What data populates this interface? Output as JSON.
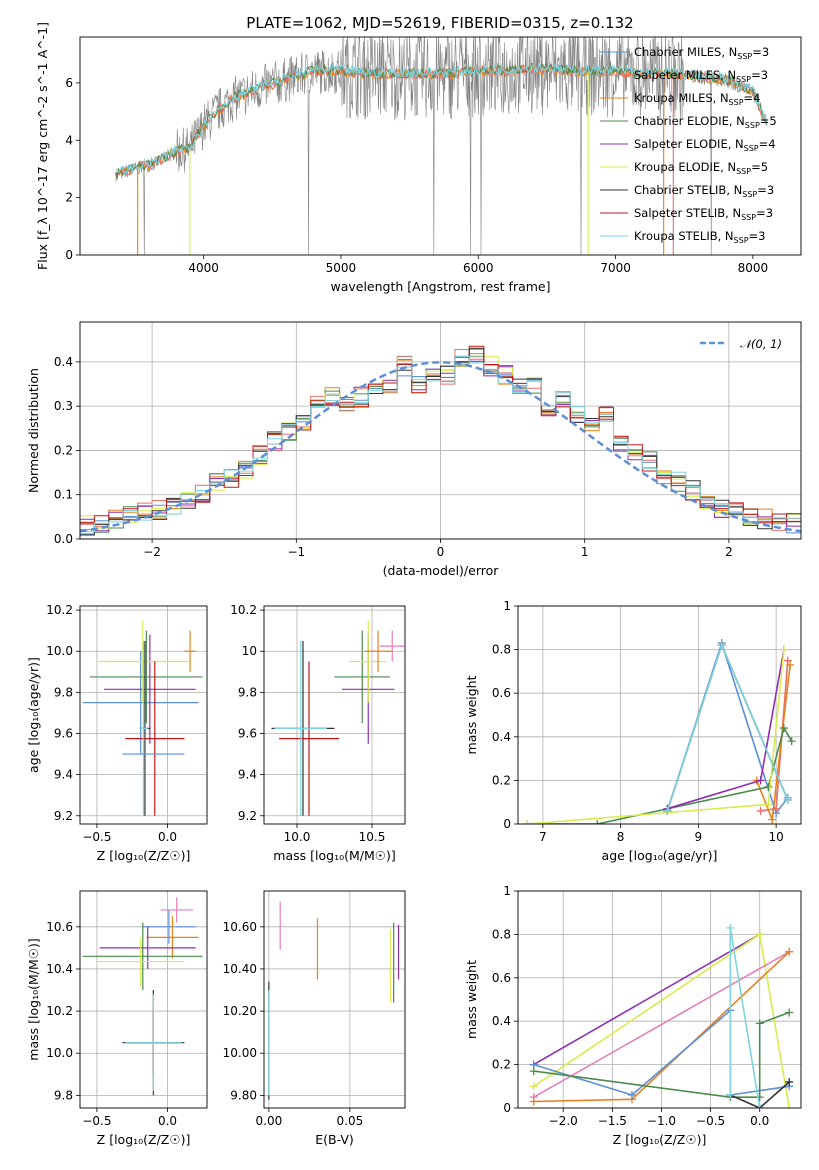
{
  "title": "PLATE=1062, MJD=52619, FIBERID=0315, z=0.132",
  "colors": {
    "Chabrier MILES": "#5b8fd6",
    "Salpeter MILES": "#e8706a",
    "Kroupa MILES": "#e8821e",
    "Chabrier ELODIE": "#4e8a4e",
    "Salpeter ELODIE": "#8e2fb3",
    "Kroupa ELODIE": "#d9ec4d",
    "Chabrier STELIB": "#333333",
    "Salpeter STELIB": "#c01818",
    "Kroupa STELIB": "#7fd3e0",
    "data": "#808080",
    "pink": "#e87fb8",
    "normal": "#5b8fd6"
  },
  "chart_data": [
    {
      "id": "spectrum",
      "type": "line",
      "xlabel": "wavelength [Angstrom, rest frame]",
      "ylabel": "Flux [f_λ 10^-17 erg cm^-2 s^-1 A^-1]",
      "xlim": [
        3100,
        8350
      ],
      "ylim": [
        0,
        7.6
      ],
      "xticks": [
        4000,
        5000,
        6000,
        7000,
        8000
      ],
      "yticks": [
        0,
        2,
        4,
        6
      ],
      "legend_position": "top-right",
      "legend": [
        {
          "name": "Chabrier MILES, N_SSP=3",
          "label": "Chabrier MILES, N",
          "n": "=3"
        },
        {
          "name": "Salpeter MILES, N_SSP=3",
          "label": "Salpeter MILES, N",
          "n": "=3"
        },
        {
          "name": "Kroupa MILES, N_SSP=4",
          "label": "Kroupa MILES, N",
          "n": "=4"
        },
        {
          "name": "Chabrier ELODIE, N_SSP=5",
          "label": "Chabrier ELODIE, N",
          "n": "=5"
        },
        {
          "name": "Salpeter ELODIE, N_SSP=4",
          "label": "Salpeter ELODIE, N",
          "n": "=4"
        },
        {
          "name": "Kroupa ELODIE, N_SSP=5",
          "label": "Kroupa ELODIE, N",
          "n": "=5"
        },
        {
          "name": "Chabrier STELIB, N_SSP=3",
          "label": "Chabrier STELIB, N",
          "n": "=3"
        },
        {
          "name": "Salpeter STELIB, N_SSP=3",
          "label": "Salpeter STELIB, N",
          "n": "=3"
        },
        {
          "name": "Kroupa STELIB, N_SSP=3",
          "label": "Kroupa STELIB, N",
          "n": "=3"
        }
      ],
      "continuum": {
        "wavelength": [
          3360,
          3500,
          3650,
          3800,
          3900,
          4000,
          4100,
          4200,
          4400,
          4600,
          4800,
          5000,
          5200,
          5400,
          5600,
          5800,
          6000,
          6200,
          6400,
          6600,
          6800,
          7000,
          7200,
          7400,
          7600,
          7800,
          8000,
          8100
        ],
        "flux": [
          2.8,
          3.0,
          3.2,
          3.6,
          3.7,
          4.5,
          5.0,
          5.4,
          5.8,
          6.1,
          6.4,
          6.4,
          6.3,
          6.3,
          6.3,
          6.3,
          6.4,
          6.4,
          6.5,
          6.4,
          6.4,
          6.4,
          6.3,
          6.3,
          6.2,
          6.1,
          5.7,
          4.6
        ]
      }
    },
    {
      "id": "residuals",
      "type": "line",
      "xlabel": "(data-model)/error",
      "ylabel": "Normed distribution",
      "xlim": [
        -2.5,
        2.5
      ],
      "ylim": [
        0,
        0.49
      ],
      "xticks": [
        -2,
        -1,
        0,
        1,
        2
      ],
      "yticks": [
        0.0,
        0.1,
        0.2,
        0.3,
        0.4
      ],
      "legend_position": "top-right",
      "legend": {
        "name": "𝒩(0, 1)"
      },
      "bin_width": 0.1,
      "bin_centers": [
        -2.45,
        -2.35,
        -2.25,
        -2.15,
        -2.05,
        -1.95,
        -1.85,
        -1.75,
        -1.65,
        -1.55,
        -1.45,
        -1.35,
        -1.25,
        -1.15,
        -1.05,
        -0.95,
        -0.85,
        -0.75,
        -0.65,
        -0.55,
        -0.45,
        -0.35,
        -0.25,
        -0.15,
        -0.05,
        0.05,
        0.15,
        0.25,
        0.35,
        0.45,
        0.55,
        0.65,
        0.75,
        0.85,
        0.95,
        1.05,
        1.15,
        1.25,
        1.35,
        1.45,
        1.55,
        1.65,
        1.75,
        1.85,
        1.95,
        2.05,
        2.15,
        2.25,
        2.35,
        2.45
      ],
      "histogram": [
        0.03,
        0.035,
        0.045,
        0.055,
        0.06,
        0.065,
        0.075,
        0.085,
        0.105,
        0.125,
        0.135,
        0.16,
        0.19,
        0.22,
        0.24,
        0.265,
        0.3,
        0.32,
        0.3,
        0.32,
        0.33,
        0.34,
        0.39,
        0.35,
        0.37,
        0.37,
        0.41,
        0.42,
        0.39,
        0.37,
        0.34,
        0.35,
        0.3,
        0.32,
        0.28,
        0.26,
        0.28,
        0.22,
        0.2,
        0.175,
        0.145,
        0.13,
        0.11,
        0.085,
        0.07,
        0.06,
        0.05,
        0.045,
        0.04,
        0.035
      ]
    },
    {
      "id": "age-vs-Z",
      "type": "scatter",
      "xlabel": "Z [log₁₀(Z/Z☉)]",
      "ylabel": "age [log₁₀(age/yr)]",
      "xlim": [
        -0.62,
        0.28
      ],
      "ylim": [
        9.16,
        10.22
      ],
      "xticks": [
        -0.5,
        0.0
      ],
      "yticks": [
        9.2,
        9.4,
        9.6,
        9.8,
        10.0,
        10.2
      ],
      "crosses": [
        {
          "series": "Chabrier MILES",
          "x": [
            -0.6,
            0.22
          ],
          "y": [
            9.5,
            10.0
          ]
        },
        {
          "series": "Salpeter ELODIE",
          "x": [
            -0.45,
            0.2
          ],
          "y": [
            9.55,
            10.08
          ]
        },
        {
          "series": "Kroupa MILES",
          "x": [
            0.12,
            0.2
          ],
          "y": [
            9.9,
            10.1
          ]
        },
        {
          "series": "Kroupa ELODIE",
          "x": [
            -0.5,
            0.15
          ],
          "y": [
            9.75,
            10.15
          ]
        },
        {
          "series": "Chabrier ELODIE",
          "x": [
            -0.55,
            0.25
          ],
          "y": [
            9.65,
            10.1
          ]
        },
        {
          "series": "Chabrier STELIB",
          "x": [
            -0.2,
            -0.12
          ],
          "y": [
            9.2,
            10.05
          ]
        },
        {
          "series": "Salpeter STELIB",
          "x": [
            -0.3,
            0.12
          ],
          "y": [
            9.2,
            9.95
          ]
        },
        {
          "series": "Kroupa STELIB",
          "x": [
            -0.2,
            -0.14
          ],
          "y": [
            9.2,
            10.05
          ]
        },
        {
          "series": "Chabrier MILES",
          "x": [
            -0.32,
            0.12
          ],
          "y": [
            9.5,
            9.5
          ]
        }
      ]
    },
    {
      "id": "age-vs-mass",
      "type": "scatter",
      "xlabel": "mass [log₁₀(M/M☉)]",
      "ylabel": "",
      "xlim": [
        9.78,
        10.72
      ],
      "ylim": [
        9.16,
        10.22
      ],
      "xticks": [
        10.0,
        10.5
      ],
      "yticks": [
        9.2,
        9.4,
        9.6,
        9.8,
        10.0,
        10.2
      ],
      "crosses": [
        {
          "series": "Chabrier STELIB",
          "x": [
            9.83,
            10.25
          ],
          "y": [
            9.2,
            10.05
          ]
        },
        {
          "series": "Salpeter STELIB",
          "x": [
            9.88,
            10.28
          ],
          "y": [
            9.2,
            9.95
          ]
        },
        {
          "series": "Kroupa STELIB",
          "x": [
            9.85,
            10.2
          ],
          "y": [
            9.2,
            10.05
          ]
        },
        {
          "series": "Chabrier ELODIE",
          "x": [
            10.25,
            10.62
          ],
          "y": [
            9.65,
            10.1
          ]
        },
        {
          "series": "Salpeter ELODIE",
          "x": [
            10.3,
            10.65
          ],
          "y": [
            9.55,
            10.08
          ]
        },
        {
          "series": "Kroupa ELODIE",
          "x": [
            10.35,
            10.6
          ],
          "y": [
            9.75,
            10.15
          ]
        },
        {
          "series": "Kroupa MILES",
          "x": [
            10.45,
            10.63
          ],
          "y": [
            9.9,
            10.1
          ]
        },
        {
          "series": "pink",
          "x": [
            10.55,
            10.72
          ],
          "y": [
            9.95,
            10.1
          ]
        }
      ]
    },
    {
      "id": "weight-vs-age",
      "type": "line",
      "xlabel": "age [log₁₀(age/yr)]",
      "ylabel": "mass weight",
      "xlim": [
        6.68,
        10.32
      ],
      "ylim": [
        0,
        1.0
      ],
      "xticks": [
        7,
        8,
        9,
        10
      ],
      "yticks": [
        0.0,
        0.2,
        0.4,
        0.6,
        0.8,
        1.0
      ],
      "series": [
        {
          "name": "Chabrier MILES",
          "x": [
            8.6,
            9.3,
            10.0,
            10.15
          ],
          "y": [
            0.06,
            0.83,
            0.05,
            0.12
          ]
        },
        {
          "name": "Salpeter MILES",
          "x": [
            9.8,
            10.0,
            10.15
          ],
          "y": [
            0.06,
            0.07,
            0.75
          ]
        },
        {
          "name": "Kroupa MILES",
          "x": [
            9.75,
            9.95,
            10.18
          ],
          "y": [
            0.2,
            0.02,
            0.73
          ]
        },
        {
          "name": "Chabrier ELODIE",
          "x": [
            6.8,
            7.7,
            9.9,
            10.1,
            10.2
          ],
          "y": [
            0.0,
            0.0,
            0.17,
            0.44,
            0.38
          ]
        },
        {
          "name": "Salpeter ELODIE",
          "x": [
            8.6,
            9.8,
            10.1
          ],
          "y": [
            0.07,
            0.2,
            0.8
          ]
        },
        {
          "name": "Kroupa ELODIE",
          "x": [
            6.8,
            9.9,
            10.1
          ],
          "y": [
            0.0,
            0.09,
            0.8
          ]
        },
        {
          "name": "Chabrier STELIB",
          "x": [
            8.6,
            9.3,
            10.15
          ],
          "y": [
            0.06,
            0.82,
            0.11
          ]
        },
        {
          "name": "Kroupa STELIB",
          "x": [
            8.6,
            9.3,
            10.15
          ],
          "y": [
            0.06,
            0.82,
            0.11
          ]
        }
      ]
    },
    {
      "id": "mass-vs-Z",
      "type": "scatter",
      "xlabel": "Z [log₁₀(Z/Z☉)]",
      "ylabel": "mass [log₁₀(M/M☉)]",
      "xlim": [
        -0.62,
        0.28
      ],
      "ylim": [
        9.74,
        10.77
      ],
      "xticks": [
        -0.5,
        0.0
      ],
      "yticks": [
        9.8,
        10.0,
        10.2,
        10.4,
        10.6
      ],
      "crosses": [
        {
          "series": "pink",
          "x": [
            -0.05,
            0.18
          ],
          "y": [
            10.62,
            10.74
          ]
        },
        {
          "series": "Chabrier MILES",
          "x": [
            -0.18,
            0.2
          ],
          "y": [
            10.52,
            10.68
          ]
        },
        {
          "series": "Kroupa MILES",
          "x": [
            -0.15,
            0.22
          ],
          "y": [
            10.45,
            10.65
          ]
        },
        {
          "series": "Chabrier ELODIE",
          "x": [
            -0.6,
            0.25
          ],
          "y": [
            10.3,
            10.62
          ]
        },
        {
          "series": "Salpeter ELODIE",
          "x": [
            -0.48,
            0.2
          ],
          "y": [
            10.4,
            10.6
          ]
        },
        {
          "series": "Kroupa ELODIE",
          "x": [
            -0.5,
            0.12
          ],
          "y": [
            10.32,
            10.55
          ]
        },
        {
          "series": "Salpeter STELIB",
          "x": [
            -0.3,
            0.1
          ],
          "y": [
            9.9,
            10.2
          ]
        },
        {
          "series": "Chabrier STELIB",
          "x": [
            -0.32,
            0.12
          ],
          "y": [
            9.8,
            10.3
          ]
        },
        {
          "series": "Kroupa STELIB",
          "x": [
            -0.3,
            0.1
          ],
          "y": [
            9.82,
            10.28
          ]
        }
      ]
    },
    {
      "id": "mass-vs-EBV",
      "type": "scatter",
      "xlabel": "E(B-V)",
      "ylabel": "",
      "xlim": [
        -0.003,
        0.084
      ],
      "ylim": [
        9.74,
        10.77
      ],
      "xticks": [
        0.0,
        0.05
      ],
      "yticks": [
        9.8,
        10.0,
        10.2,
        10.4,
        10.6
      ],
      "vlines": [
        {
          "series": "Chabrier STELIB",
          "x": 0.0,
          "y": [
            9.78,
            10.34
          ]
        },
        {
          "series": "Kroupa STELIB",
          "x": 0.0,
          "y": [
            9.8,
            10.3
          ]
        },
        {
          "series": "pink",
          "x": 0.007,
          "y": [
            10.49,
            10.72
          ]
        },
        {
          "series": "Kroupa MILES",
          "x": 0.03,
          "y": [
            10.35,
            10.64
          ]
        },
        {
          "series": "Kroupa ELODIE",
          "x": 0.075,
          "y": [
            10.24,
            10.59
          ]
        },
        {
          "series": "Chabrier ELODIE",
          "x": 0.077,
          "y": [
            10.24,
            10.62
          ]
        },
        {
          "series": "Salpeter ELODIE",
          "x": 0.08,
          "y": [
            10.35,
            10.61
          ]
        }
      ]
    },
    {
      "id": "weight-vs-Z",
      "type": "line",
      "xlabel": "Z [log₁₀(Z/Z☉)]",
      "ylabel": "mass weight",
      "xlim": [
        -2.46,
        0.42
      ],
      "ylim": [
        0,
        1.0
      ],
      "xticks": [
        -2.0,
        -1.5,
        -1.0,
        -0.5,
        0.0
      ],
      "yticks": [
        0.0,
        0.2,
        0.4,
        0.6,
        0.8,
        1.0
      ],
      "series": [
        {
          "name": "Salpeter ELODIE",
          "x": [
            -2.3,
            0.0
          ],
          "y": [
            0.2,
            0.8
          ]
        },
        {
          "name": "Kroupa ELODIE",
          "x": [
            -2.3,
            0.0,
            0.3
          ],
          "y": [
            0.1,
            0.8,
            0.0
          ]
        },
        {
          "name": "pink",
          "x": [
            -2.3,
            0.3
          ],
          "y": [
            0.05,
            0.72
          ]
        },
        {
          "name": "Kroupa MILES",
          "x": [
            -2.3,
            -1.3,
            0.3
          ],
          "y": [
            0.03,
            0.04,
            0.72
          ]
        },
        {
          "name": "Chabrier MILES",
          "x": [
            -2.3,
            -1.3,
            -0.3,
            -0.3,
            0.3
          ],
          "y": [
            0.2,
            0.06,
            0.45,
            0.06,
            0.1
          ]
        },
        {
          "name": "Chabrier ELODIE",
          "x": [
            -2.3,
            -0.3,
            0.0,
            0.0,
            0.3
          ],
          "y": [
            0.17,
            0.05,
            0.05,
            0.39,
            0.44
          ]
        },
        {
          "name": "Chabrier STELIB",
          "x": [
            -0.3,
            0.0,
            0.3
          ],
          "y": [
            0.06,
            0.0,
            0.12
          ]
        },
        {
          "name": "Kroupa STELIB",
          "x": [
            -0.3,
            -0.3,
            0.0
          ],
          "y": [
            0.06,
            0.83,
            0.0
          ]
        }
      ]
    }
  ]
}
